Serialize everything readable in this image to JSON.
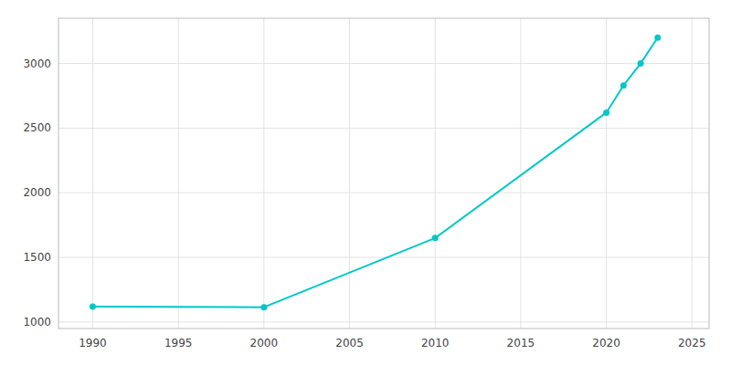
{
  "chart_data": {
    "type": "line",
    "x": [
      1990,
      2000,
      2010,
      2020,
      2021,
      2022,
      2023
    ],
    "values": [
      1120,
      1115,
      1650,
      2620,
      2830,
      3000,
      3200
    ],
    "color": "#00c8c8",
    "marker": "circle",
    "xlim": [
      1988,
      2026
    ],
    "ylim": [
      950,
      3350
    ],
    "xticks": [
      1990,
      1995,
      2000,
      2005,
      2010,
      2015,
      2020,
      2025
    ],
    "yticks": [
      1000,
      1500,
      2000,
      2500,
      3000
    ],
    "grid": true
  }
}
